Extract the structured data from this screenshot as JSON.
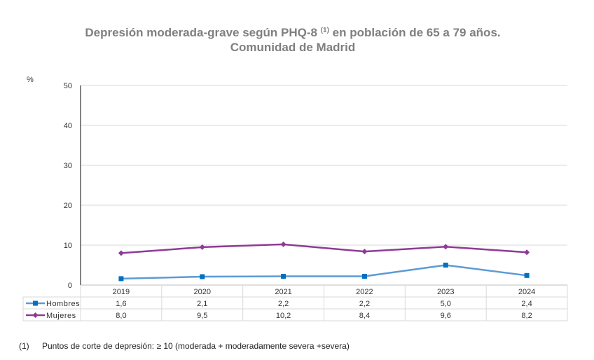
{
  "chart_data": {
    "type": "line",
    "title_main": "Depresión moderada-grave según PHQ-8",
    "title_sup": "(1)",
    "title_rest": "en población de 65 a 79 años.",
    "subtitle": "Comunidad de Madrid",
    "ylabel": "%",
    "ylim": [
      0,
      50
    ],
    "yticks": [
      "0",
      "10",
      "20",
      "30",
      "40",
      "50"
    ],
    "categories": [
      "2019",
      "2020",
      "2021",
      "2022",
      "2023",
      "2024"
    ],
    "series": [
      {
        "name": "Hombres",
        "color": "#5b9bd5",
        "marker": "square",
        "values": [
          1.6,
          2.1,
          2.2,
          2.2,
          5.0,
          2.4
        ],
        "labels": [
          "1,6",
          "2,1",
          "2,2",
          "2,2",
          "5,0",
          "2,4"
        ]
      },
      {
        "name": "Mujeres",
        "color": "#8e3a96",
        "marker": "diamond",
        "values": [
          8.0,
          9.5,
          10.2,
          8.4,
          9.6,
          8.2
        ],
        "labels": [
          "8,0",
          "9,5",
          "10,2",
          "8,4",
          "9,6",
          "8,2"
        ]
      }
    ],
    "grid": true,
    "legend": "data-table"
  },
  "footnote": {
    "number": "(1)",
    "text": "Puntos de corte de depresión: ≥ 10 (moderada + moderadamente severa +severa)"
  }
}
